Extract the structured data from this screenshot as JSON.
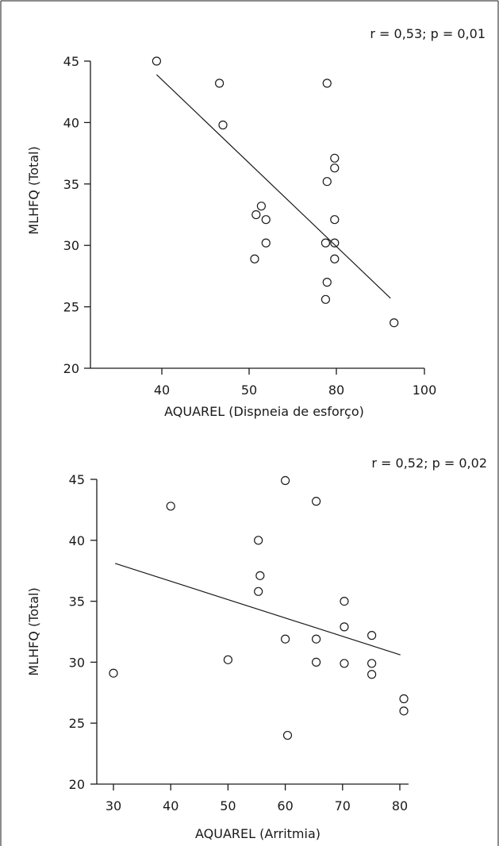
{
  "chart_data": [
    {
      "type": "scatter",
      "annotation": "r = 0,53; p = 0,01",
      "xlabel": "AQUAREL (Dispneia de esforço)",
      "ylabel": "MLHFQ (Total)",
      "x_ticks": [
        40,
        50,
        80,
        100
      ],
      "y_ticks": [
        20,
        25,
        30,
        35,
        40,
        45
      ],
      "points": [
        {
          "x": 39.4,
          "y": 45
        },
        {
          "x": 46.6,
          "y": 43.2
        },
        {
          "x": 76.8,
          "y": 43.2
        },
        {
          "x": 47,
          "y": 39.8
        },
        {
          "x": 79.4,
          "y": 37.1
        },
        {
          "x": 79.4,
          "y": 36.3
        },
        {
          "x": 76.8,
          "y": 35.2
        },
        {
          "x": 54.2,
          "y": 33.2
        },
        {
          "x": 52.4,
          "y": 32.5
        },
        {
          "x": 55.8,
          "y": 32.1
        },
        {
          "x": 79.4,
          "y": 32.1
        },
        {
          "x": 55.8,
          "y": 30.2
        },
        {
          "x": 76.3,
          "y": 30.2
        },
        {
          "x": 79.4,
          "y": 30.2
        },
        {
          "x": 51.9,
          "y": 28.9
        },
        {
          "x": 79.4,
          "y": 28.9
        },
        {
          "x": 76.8,
          "y": 27
        },
        {
          "x": 76.3,
          "y": 25.6
        },
        {
          "x": 93.1,
          "y": 23.7
        }
      ],
      "trendline": {
        "x": [
          39.4,
          92.3
        ],
        "y": [
          43.9,
          25.7
        ]
      }
    },
    {
      "type": "scatter",
      "annotation": "r = 0,52; p = 0,02",
      "xlabel": "AQUAREL (Arritmia)",
      "ylabel": "MLHFQ (Total)",
      "x_ticks": [
        30,
        40,
        50,
        60,
        70,
        80
      ],
      "y_ticks": [
        20,
        25,
        30,
        35,
        40,
        45
      ],
      "xlim": [
        27,
        82
      ],
      "ylim": [
        20,
        45
      ],
      "points": [
        {
          "x": 30,
          "y": 29.1
        },
        {
          "x": 40,
          "y": 42.8
        },
        {
          "x": 50,
          "y": 30.2
        },
        {
          "x": 55.3,
          "y": 40
        },
        {
          "x": 55.6,
          "y": 37.1
        },
        {
          "x": 55.3,
          "y": 35.8
        },
        {
          "x": 60,
          "y": 44.9
        },
        {
          "x": 60,
          "y": 31.9
        },
        {
          "x": 60.4,
          "y": 24
        },
        {
          "x": 65.4,
          "y": 43.2
        },
        {
          "x": 65.4,
          "y": 31.9
        },
        {
          "x": 65.4,
          "y": 30
        },
        {
          "x": 70.3,
          "y": 35
        },
        {
          "x": 70.3,
          "y": 32.9
        },
        {
          "x": 70.3,
          "y": 29.9
        },
        {
          "x": 75.1,
          "y": 32.2
        },
        {
          "x": 75.1,
          "y": 29.9
        },
        {
          "x": 75.1,
          "y": 29
        },
        {
          "x": 80.7,
          "y": 27
        },
        {
          "x": 80.7,
          "y": 26
        }
      ],
      "trendline": {
        "x": [
          30.3,
          80.1
        ],
        "y": [
          38.1,
          30.6
        ]
      }
    }
  ]
}
